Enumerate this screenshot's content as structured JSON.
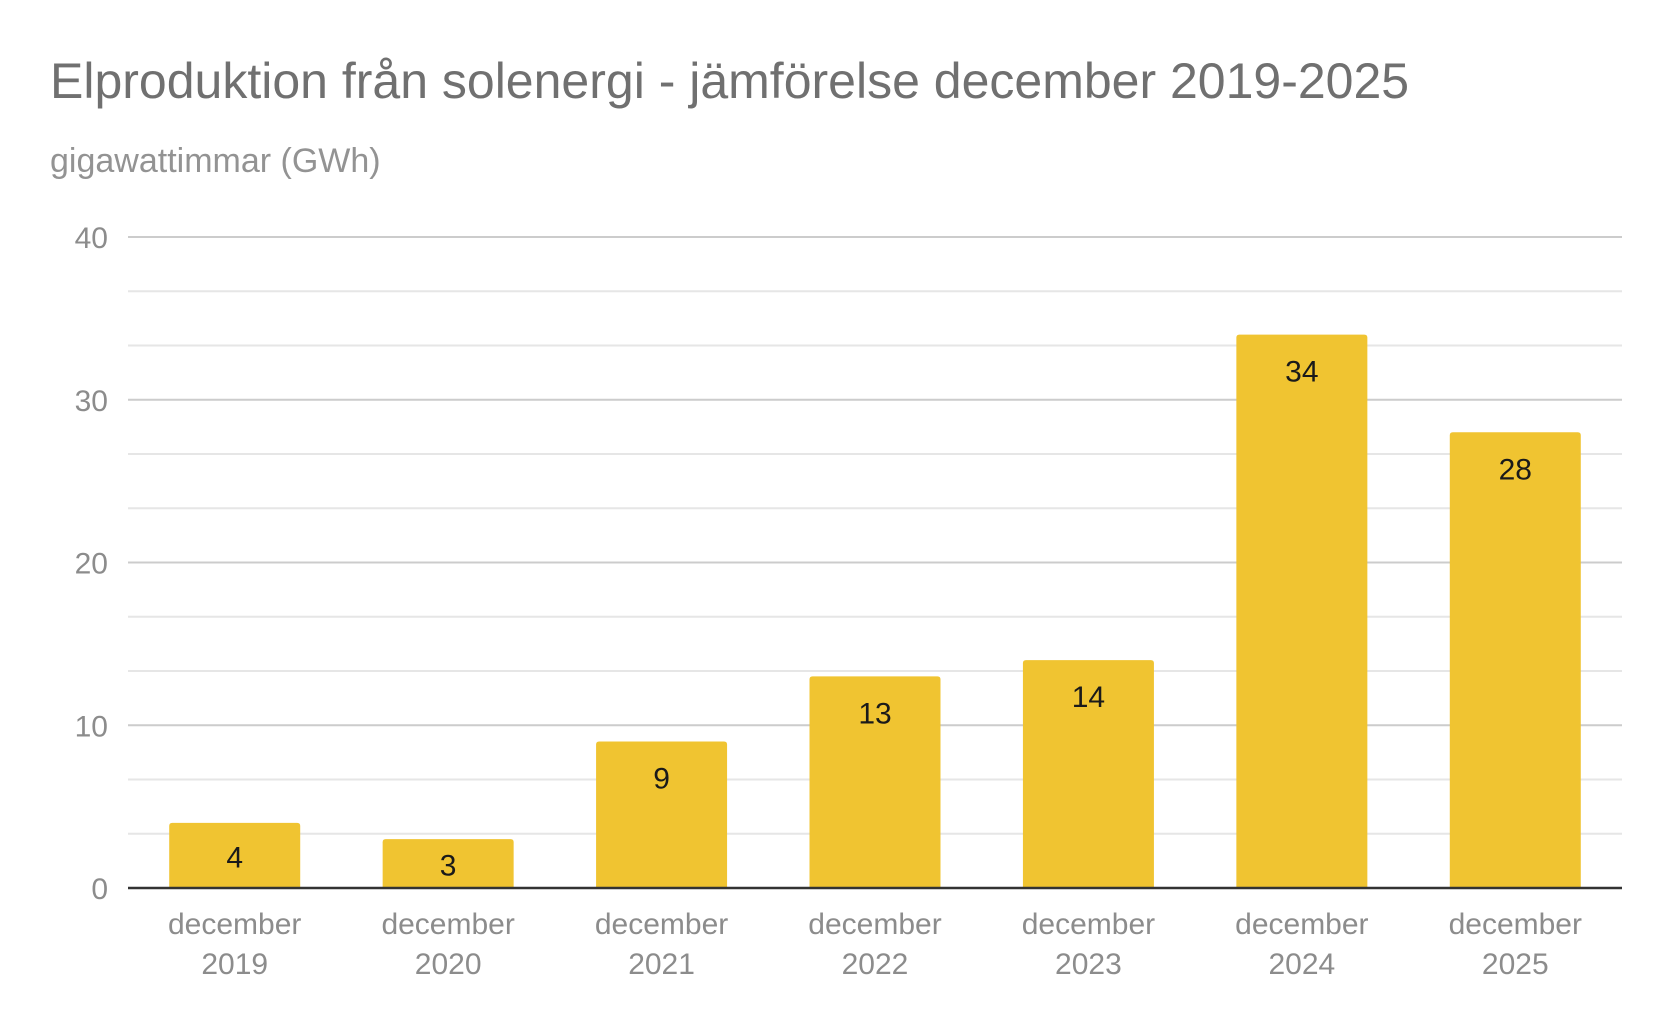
{
  "chart_data": {
    "type": "bar",
    "title": "Elproduktion från solenergi - jämförelse december 2019-2025",
    "subtitle": "gigawattimmar (GWh)",
    "xlabel": "",
    "ylabel": "gigawattimmar (GWh)",
    "categories": [
      [
        "december",
        "2019"
      ],
      [
        "december",
        "2020"
      ],
      [
        "december",
        "2021"
      ],
      [
        "december",
        "2022"
      ],
      [
        "december",
        "2023"
      ],
      [
        "december",
        "2024"
      ],
      [
        "december",
        "2025"
      ]
    ],
    "values": [
      4,
      3,
      9,
      13,
      14,
      34,
      28
    ],
    "data_labels": [
      "4",
      "3",
      "9",
      "13",
      "14",
      "34",
      "28"
    ],
    "ylim": [
      0,
      40
    ],
    "y_ticks": [
      0,
      10,
      20,
      30,
      40
    ],
    "y_tick_labels": [
      "0",
      "10",
      "20",
      "30",
      "40"
    ],
    "y_minor_step": 3.3333,
    "grid": true,
    "legend": "none",
    "colors": {
      "bar": "#F0C431",
      "major_grid": "#CCCCCC",
      "minor_grid": "#E6E6E6",
      "baseline": "#333333",
      "tick_label": "#8C8C8C",
      "data_label": "#1A1A1A"
    }
  }
}
